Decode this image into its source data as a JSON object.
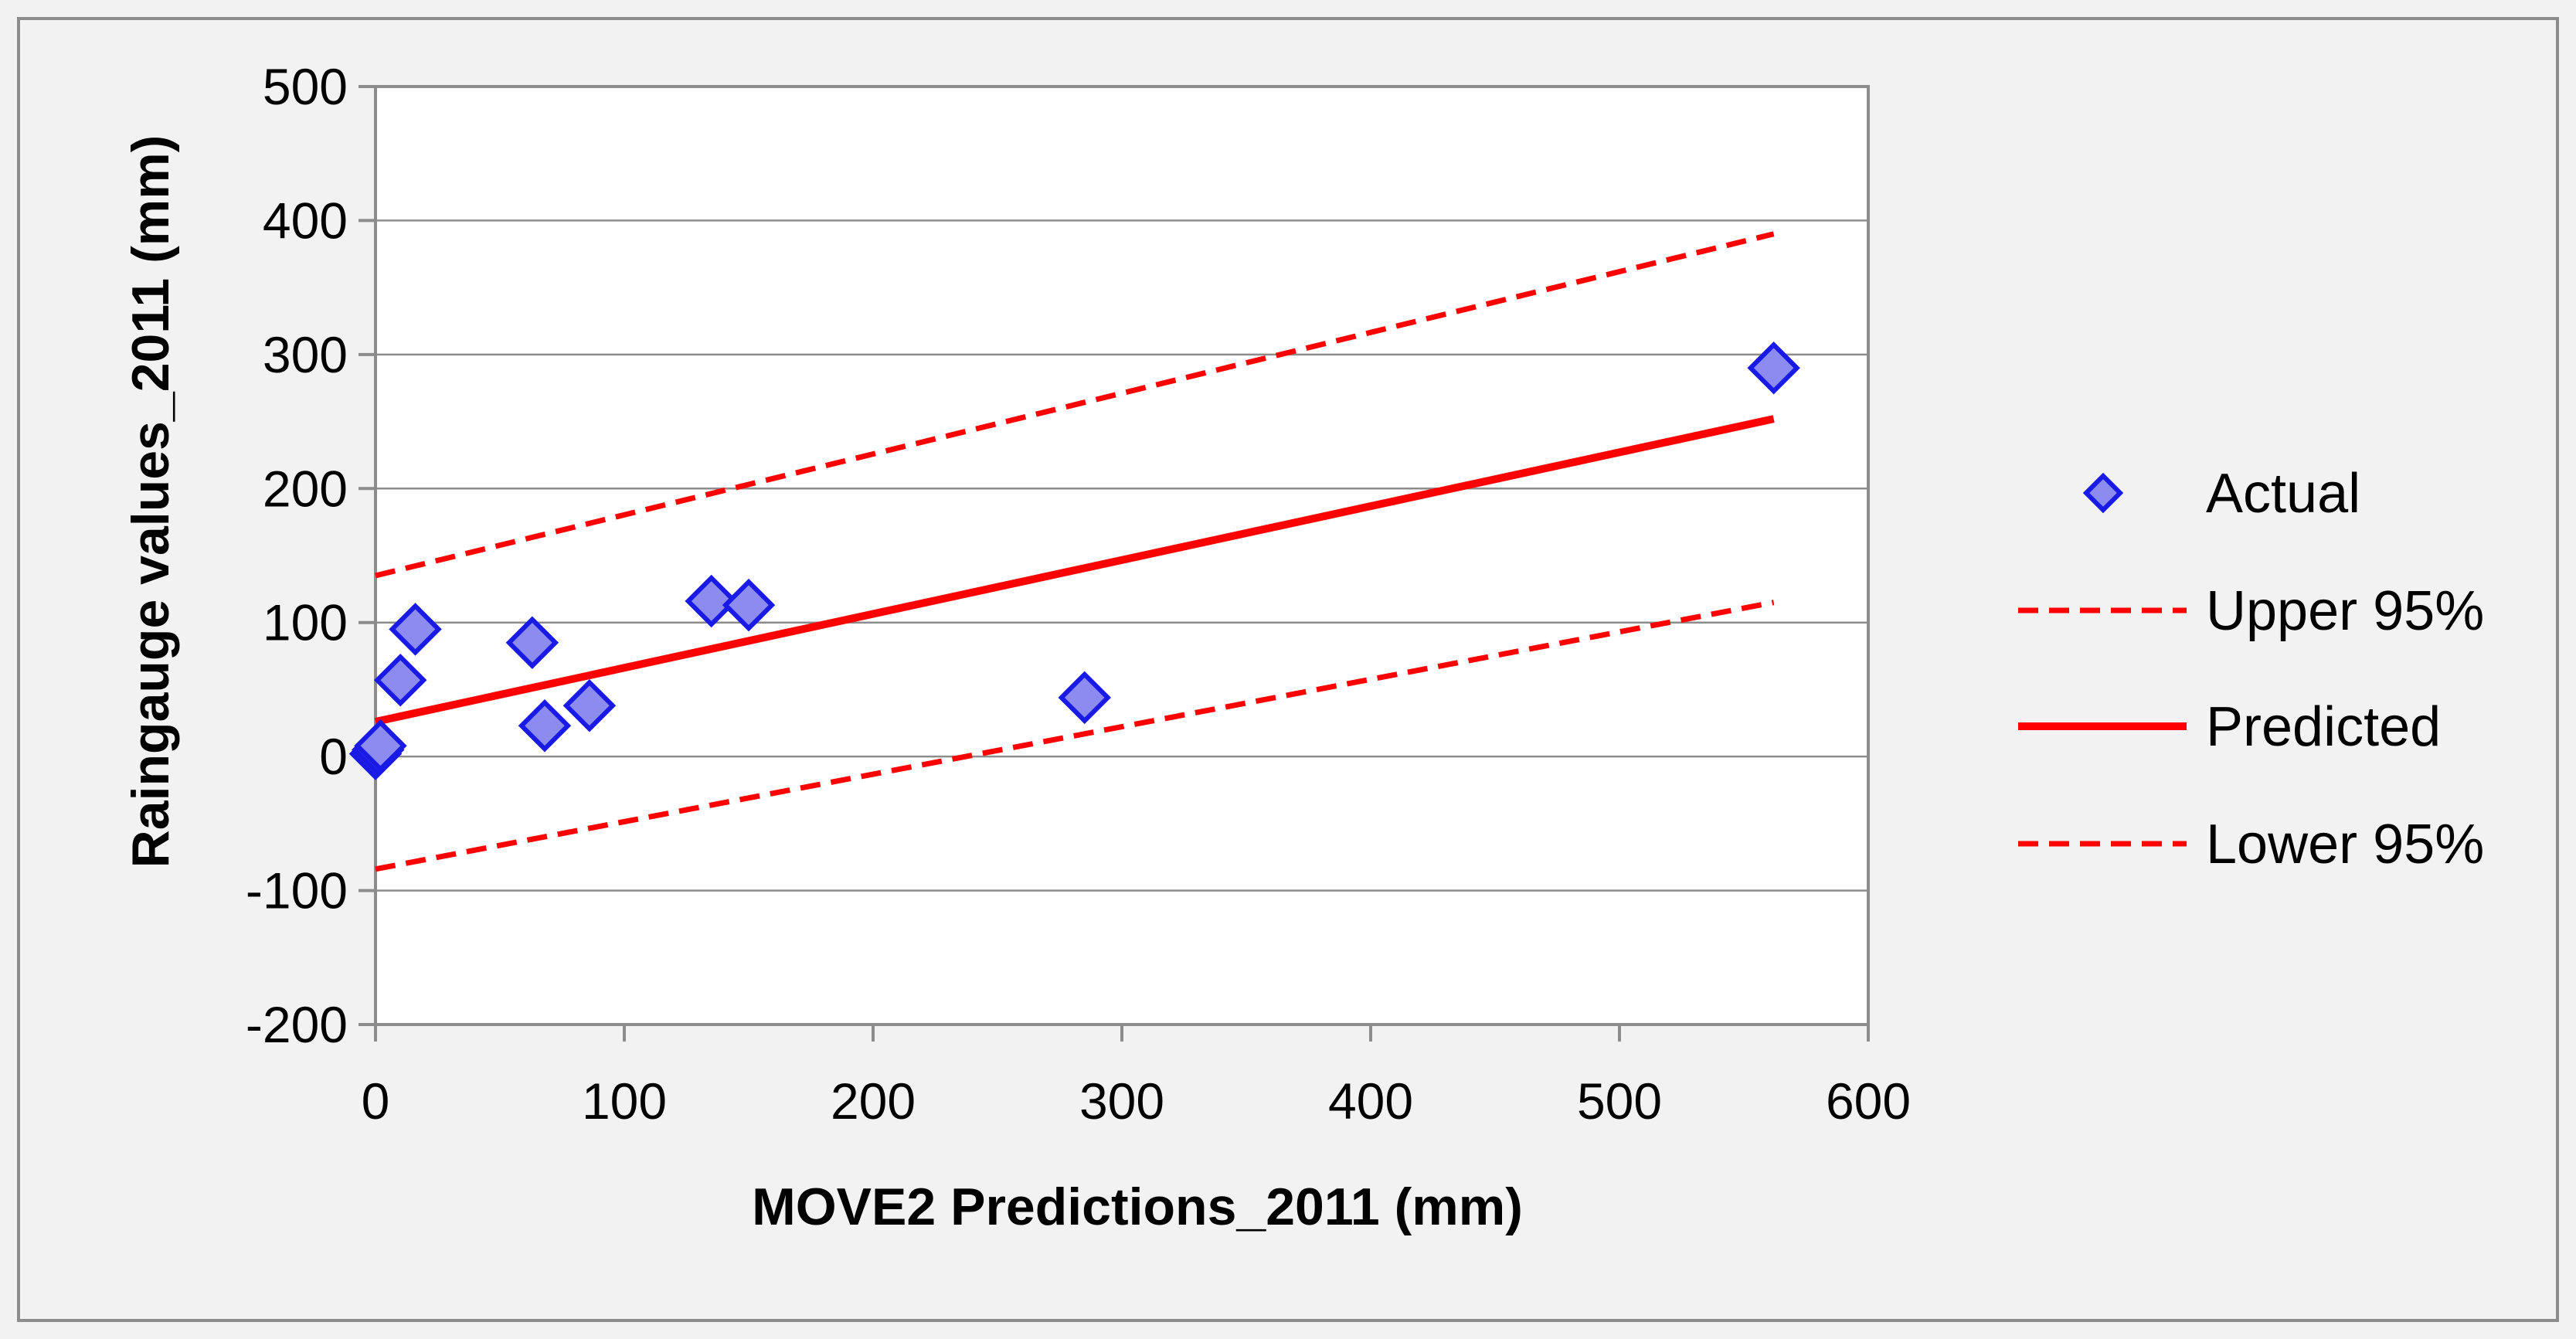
{
  "chart_data": {
    "type": "scatter",
    "title": "",
    "xlabel": "MOVE2 Predictions_2011 (mm)",
    "ylabel": "Raingauge values_2011 (mm)",
    "xlim": [
      0,
      600
    ],
    "ylim": [
      -200,
      500
    ],
    "x_ticks": [
      0,
      100,
      200,
      300,
      400,
      500,
      600
    ],
    "y_ticks": [
      -200,
      -100,
      0,
      100,
      200,
      300,
      400,
      500
    ],
    "x_tick_labels": [
      "0",
      "100",
      "200",
      "300",
      "400",
      "500",
      "600"
    ],
    "y_tick_labels": [
      "-200",
      "-100",
      "0",
      "100",
      "200",
      "300",
      "400",
      "500"
    ],
    "grid": "horizontal",
    "legend_position": "right",
    "series": [
      {
        "name": "Actual",
        "kind": "markers",
        "marker": "diamond",
        "color": "#8C8CF0",
        "edge_color": "#1A1AE6",
        "points": [
          {
            "x": 0,
            "y": 2
          },
          {
            "x": 1,
            "y": 5
          },
          {
            "x": 2,
            "y": 8
          },
          {
            "x": 10,
            "y": 57
          },
          {
            "x": 16,
            "y": 95
          },
          {
            "x": 63,
            "y": 85
          },
          {
            "x": 68,
            "y": 23
          },
          {
            "x": 86,
            "y": 38
          },
          {
            "x": 135,
            "y": 116
          },
          {
            "x": 150,
            "y": 113
          },
          {
            "x": 285,
            "y": 44
          },
          {
            "x": 562,
            "y": 290
          }
        ]
      },
      {
        "name": "Upper 95%",
        "kind": "line",
        "style": "dashed",
        "color": "#FF0000",
        "points": [
          {
            "x": 0,
            "y": 135
          },
          {
            "x": 562,
            "y": 390
          }
        ]
      },
      {
        "name": "Predicted",
        "kind": "line",
        "style": "solid",
        "color": "#FF0000",
        "points": [
          {
            "x": 0,
            "y": 26
          },
          {
            "x": 562,
            "y": 252
          }
        ]
      },
      {
        "name": "Lower 95%",
        "kind": "line",
        "style": "dashed",
        "color": "#FF0000",
        "points": [
          {
            "x": 0,
            "y": -84
          },
          {
            "x": 562,
            "y": 115
          }
        ]
      }
    ],
    "legend_order": [
      "Actual",
      "Upper 95%",
      "Predicted",
      "Lower 95%"
    ]
  }
}
